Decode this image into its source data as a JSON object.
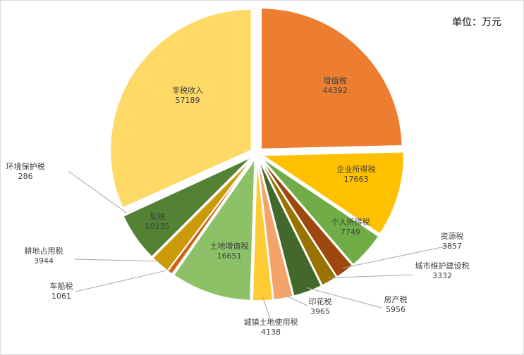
{
  "unit_label": "单位：万元",
  "chart_data": {
    "type": "pie",
    "title": "",
    "legend": "none",
    "slices": [
      {
        "name": "增值税",
        "value": 44392,
        "color": "#ED7D31"
      },
      {
        "name": "企业所得税",
        "value": 17663,
        "color": "#FFC000"
      },
      {
        "name": "个人所得税",
        "value": 7749,
        "color": "#70AD47"
      },
      {
        "name": "资源税",
        "value": 3857,
        "color": "#9E480E"
      },
      {
        "name": "城市维护建设税",
        "value": 3332,
        "color": "#997300"
      },
      {
        "name": "房产税",
        "value": 5956,
        "color": "#43682B"
      },
      {
        "name": "印花税",
        "value": 3965,
        "color": "#F4A46A"
      },
      {
        "name": "城镇土地使用税",
        "value": 4138,
        "color": "#FFCD33"
      },
      {
        "name": "土地增值税",
        "value": 16651,
        "color": "#8CC168"
      },
      {
        "name": "车船税",
        "value": 1061,
        "color": "#D26012"
      },
      {
        "name": "耕地占用税",
        "value": 3944,
        "color": "#CC9A06"
      },
      {
        "name": "契税",
        "value": 10135,
        "color": "#548235"
      },
      {
        "name": "环境保护税",
        "value": 286,
        "color": "#A9C9E8"
      },
      {
        "name": "非税收入",
        "value": 57189,
        "color": "#FFD966"
      }
    ]
  }
}
